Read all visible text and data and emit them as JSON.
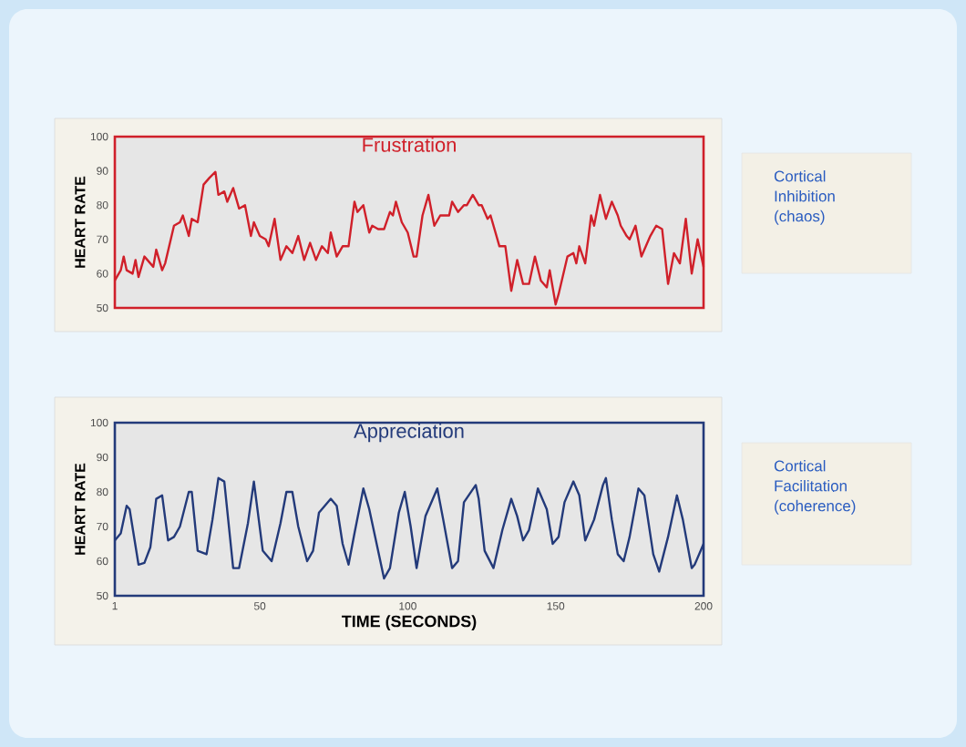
{
  "chart_data": [
    {
      "type": "line",
      "title": "Frustration",
      "ylabel": "HEART RATE",
      "xlim": [
        1,
        200
      ],
      "ylim": [
        50,
        100
      ],
      "yticks": [
        50,
        60,
        70,
        80,
        90,
        100
      ],
      "tick_labels": "y",
      "annotations": [
        "Cortical Inhibition (chaos)"
      ],
      "series": [
        {
          "color": "#d0202a",
          "x": [
            1,
            3,
            4,
            5,
            7,
            8,
            9,
            11,
            12,
            14,
            15,
            17,
            18,
            21,
            23,
            24,
            26,
            27,
            29,
            31,
            33,
            35,
            36,
            38,
            39,
            41,
            43,
            45,
            47,
            48,
            50,
            52,
            53,
            55,
            57,
            59,
            61,
            63,
            65,
            67,
            69,
            71,
            73,
            74,
            76,
            78,
            80,
            82,
            83,
            85,
            87,
            88,
            90,
            92,
            94,
            95,
            96,
            98,
            100,
            102,
            103,
            105,
            107,
            109,
            111,
            114,
            115,
            117,
            119,
            120,
            122,
            124,
            125,
            127,
            128,
            131,
            133,
            135,
            137,
            139,
            141,
            143,
            145,
            147,
            148,
            150,
            151,
            154,
            156,
            157,
            158,
            160,
            162,
            163,
            165,
            167,
            169,
            171,
            172,
            174,
            175,
            177,
            179,
            182,
            184,
            186,
            188,
            190,
            192,
            194,
            196,
            198,
            200
          ],
          "values": [
            58,
            61,
            65,
            61,
            60,
            64,
            59,
            65,
            64,
            62,
            67,
            61,
            63,
            74,
            75,
            77,
            71,
            76,
            75,
            86,
            88,
            89.7,
            83,
            84,
            81,
            85,
            79,
            80,
            71,
            75,
            71,
            70,
            68,
            76,
            64,
            68,
            66,
            71,
            64,
            69,
            64,
            68,
            66,
            72,
            65,
            68,
            68,
            81,
            78,
            80,
            72,
            74,
            73,
            73,
            78,
            77,
            81,
            75,
            72,
            65,
            65,
            77,
            83,
            74,
            77,
            77,
            81,
            78,
            80,
            80,
            83,
            80,
            80,
            76,
            77,
            68,
            68,
            55,
            64,
            57,
            57,
            65,
            58,
            56,
            61,
            51,
            54,
            65,
            66,
            63,
            68,
            63,
            77,
            74,
            83,
            76,
            81,
            77,
            74,
            71,
            70,
            74,
            65,
            71,
            74,
            73,
            57,
            66,
            63,
            76,
            60,
            70,
            62
          ]
        }
      ]
    },
    {
      "type": "line",
      "title": "Appreciation",
      "xlabel": "TIME (SECONDS)",
      "ylabel": "HEART RATE",
      "xlim": [
        1,
        200
      ],
      "ylim": [
        50,
        100
      ],
      "xticks": [
        1,
        50,
        100,
        150,
        200
      ],
      "yticks": [
        50,
        60,
        70,
        80,
        90,
        100
      ],
      "annotations": [
        "Cortical Facilitation (coherence)"
      ],
      "series": [
        {
          "color": "#233a7a",
          "x": [
            1,
            3,
            5,
            6,
            9,
            11,
            13,
            15,
            17,
            19,
            21,
            23,
            26,
            27,
            29,
            32,
            34,
            36,
            38,
            41,
            43,
            46,
            48,
            51,
            54,
            57,
            59,
            61,
            63,
            66,
            68,
            70,
            74,
            76,
            78,
            80,
            82,
            85,
            87,
            92,
            94,
            97,
            99,
            101,
            103,
            106,
            110,
            112,
            115,
            117,
            119,
            123,
            124,
            126,
            129,
            132,
            135,
            137,
            139,
            141,
            144,
            147,
            149,
            151,
            153,
            156,
            158,
            160,
            163,
            166,
            167,
            169,
            171,
            173,
            175,
            178,
            180,
            183,
            185,
            188,
            191,
            193,
            196,
            197,
            200
          ],
          "values": [
            66,
            68,
            76,
            75,
            59,
            59.5,
            64,
            78,
            79,
            66,
            67,
            70,
            80,
            80,
            63,
            62,
            72,
            84,
            83,
            58,
            58,
            71,
            83,
            63,
            60,
            71,
            80,
            80,
            70,
            60,
            63,
            74,
            78,
            76,
            65,
            59,
            68,
            81,
            75,
            55,
            58,
            74,
            80,
            70,
            58,
            73,
            81,
            72,
            58,
            60,
            77,
            82,
            78,
            63,
            58,
            69,
            78,
            73,
            66,
            69,
            81,
            75,
            65,
            67,
            77,
            83,
            79,
            66,
            72,
            82,
            84,
            72,
            62,
            60,
            67,
            81,
            79,
            62,
            57,
            67,
            79,
            72,
            58,
            59,
            65
          ]
        }
      ]
    }
  ]
}
